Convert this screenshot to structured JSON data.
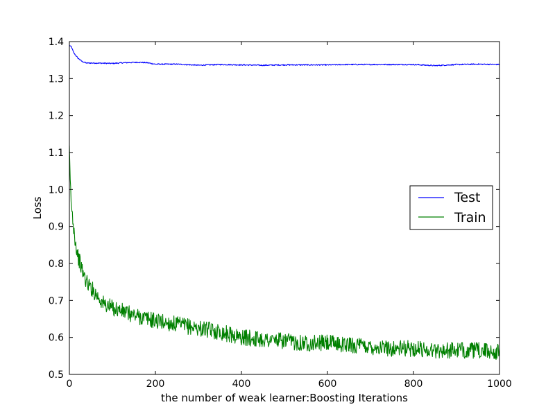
{
  "chart_data": {
    "type": "line",
    "title": "",
    "xlabel": "the number of weak learner:Boosting Iterations",
    "ylabel": "Loss",
    "xlim": [
      0,
      1000
    ],
    "ylim": [
      0.5,
      1.4
    ],
    "x_ticks": [
      "0",
      "200",
      "400",
      "600",
      "800",
      "1000"
    ],
    "y_ticks": [
      "0.5",
      "0.6",
      "0.7",
      "0.8",
      "0.9",
      "1.0",
      "1.1",
      "1.2",
      "1.3",
      "1.4"
    ],
    "grid": false,
    "legend_position": "center-right",
    "series": [
      {
        "name": "Test",
        "color": "#0000ff",
        "noise": 0.0015,
        "points": [
          [
            0,
            1.39
          ],
          [
            5,
            1.385
          ],
          [
            10,
            1.37
          ],
          [
            20,
            1.355
          ],
          [
            30,
            1.346
          ],
          [
            40,
            1.342
          ],
          [
            60,
            1.342
          ],
          [
            100,
            1.341
          ],
          [
            130,
            1.343
          ],
          [
            160,
            1.344
          ],
          [
            180,
            1.343
          ],
          [
            200,
            1.339
          ],
          [
            250,
            1.339
          ],
          [
            300,
            1.336
          ],
          [
            350,
            1.338
          ],
          [
            400,
            1.337
          ],
          [
            450,
            1.336
          ],
          [
            500,
            1.337
          ],
          [
            550,
            1.337
          ],
          [
            600,
            1.337
          ],
          [
            650,
            1.338
          ],
          [
            700,
            1.338
          ],
          [
            750,
            1.338
          ],
          [
            800,
            1.338
          ],
          [
            850,
            1.335
          ],
          [
            900,
            1.338
          ],
          [
            950,
            1.339
          ],
          [
            1000,
            1.338
          ]
        ]
      },
      {
        "name": "Train",
        "color": "#008000",
        "noise": 0.022,
        "points": [
          [
            0,
            1.1
          ],
          [
            2,
            1.02
          ],
          [
            5,
            0.95
          ],
          [
            10,
            0.9
          ],
          [
            15,
            0.85
          ],
          [
            20,
            0.82
          ],
          [
            30,
            0.78
          ],
          [
            40,
            0.75
          ],
          [
            60,
            0.72
          ],
          [
            80,
            0.69
          ],
          [
            100,
            0.68
          ],
          [
            150,
            0.66
          ],
          [
            200,
            0.645
          ],
          [
            250,
            0.635
          ],
          [
            300,
            0.625
          ],
          [
            350,
            0.615
          ],
          [
            400,
            0.6
          ],
          [
            450,
            0.595
          ],
          [
            500,
            0.59
          ],
          [
            550,
            0.585
          ],
          [
            600,
            0.585
          ],
          [
            650,
            0.58
          ],
          [
            700,
            0.575
          ],
          [
            750,
            0.57
          ],
          [
            800,
            0.57
          ],
          [
            850,
            0.565
          ],
          [
            900,
            0.565
          ],
          [
            950,
            0.565
          ],
          [
            1000,
            0.56
          ]
        ]
      }
    ]
  }
}
